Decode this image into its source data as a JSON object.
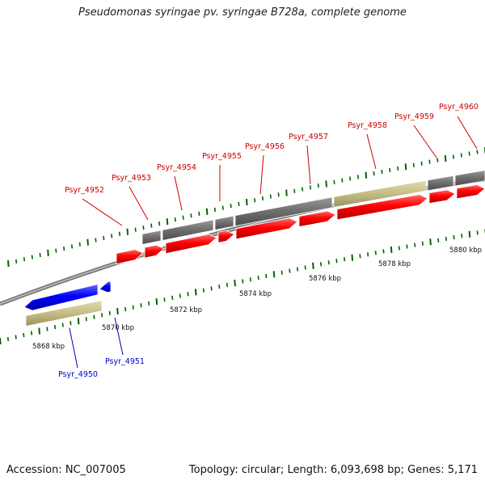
{
  "title": "Pseudomonas syringae pv. syringae B728a, complete genome",
  "footer": {
    "accession": "Accession: NC_007005",
    "stats": "Topology: circular; Length: 6,093,698 bp; Genes: 5,171"
  },
  "colors": {
    "forward_cds": "#ff0000",
    "reverse_cds": "#0000ff",
    "gene": "#707070",
    "highlight_gene": "#c8c088",
    "backbone": "#7a7a7a",
    "tick": "#006400",
    "forward_label": "#cc0000",
    "reverse_label": "#0000cc"
  },
  "scale_labels": [
    "5868 kbp",
    "5870 kbp",
    "5872 kbp",
    "5874 kbp",
    "5876 kbp",
    "5878 kbp",
    "5880 kbp"
  ],
  "forward_genes": [
    "Psyr_4952",
    "Psyr_4953",
    "Psyr_4954",
    "Psyr_4955",
    "Psyr_4956",
    "Psyr_4957",
    "Psyr_4958",
    "Psyr_4959",
    "Psyr_4960"
  ],
  "reverse_genes": [
    "Psyr_4950",
    "Psyr_4951"
  ]
}
